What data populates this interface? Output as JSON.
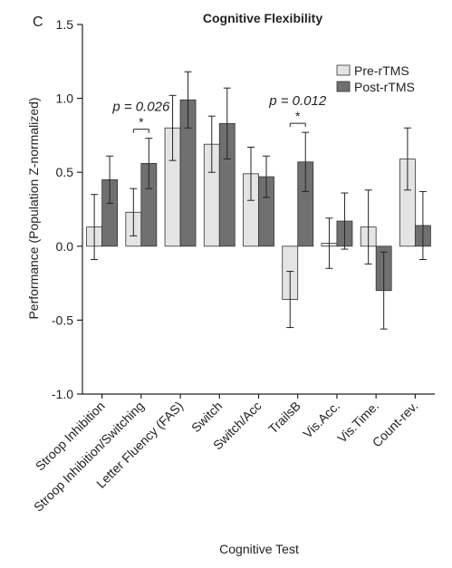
{
  "panel_label": "C",
  "chart_data": {
    "type": "bar",
    "title": "Cognitive Flexibility",
    "xlabel": "Cognitive Test",
    "ylabel": "Performance (Population Z-normalized)",
    "ylim": [
      -1.0,
      1.5
    ],
    "yticks": [
      -1.0,
      -0.5,
      0.0,
      0.5,
      1.0,
      1.5
    ],
    "ytick_labels": [
      "-1.0",
      "-0.5",
      "0.0",
      "0.5",
      "1.0",
      "1.5"
    ],
    "grid": false,
    "legend_position": "top-right",
    "categories": [
      "Stroop Inhibition",
      "Stroop Inhibition/Switching",
      "Letter Fluency (FAS)",
      "Switch",
      "Switch/Acc",
      "TrailsB",
      "Vis.Acc.",
      "Vis.Time.",
      "Count-rev."
    ],
    "series": [
      {
        "name": "Pre-rTMS",
        "color": "#e4e4e4",
        "values": [
          0.13,
          0.23,
          0.8,
          0.69,
          0.49,
          -0.36,
          0.02,
          0.13,
          0.59
        ],
        "error": [
          0.22,
          0.16,
          0.22,
          0.19,
          0.18,
          0.19,
          0.17,
          0.25,
          0.21
        ]
      },
      {
        "name": "Post-rTMS",
        "color": "#707070",
        "values": [
          0.45,
          0.56,
          0.99,
          0.83,
          0.47,
          0.57,
          0.17,
          -0.3,
          0.14
        ],
        "error": [
          0.16,
          0.17,
          0.19,
          0.24,
          0.14,
          0.2,
          0.19,
          0.26,
          0.23
        ]
      }
    ],
    "annotations": [
      {
        "category_index": 1,
        "text": "p = 0.026",
        "star": "*"
      },
      {
        "category_index": 5,
        "text": "p = 0.012",
        "star": "*"
      }
    ]
  }
}
